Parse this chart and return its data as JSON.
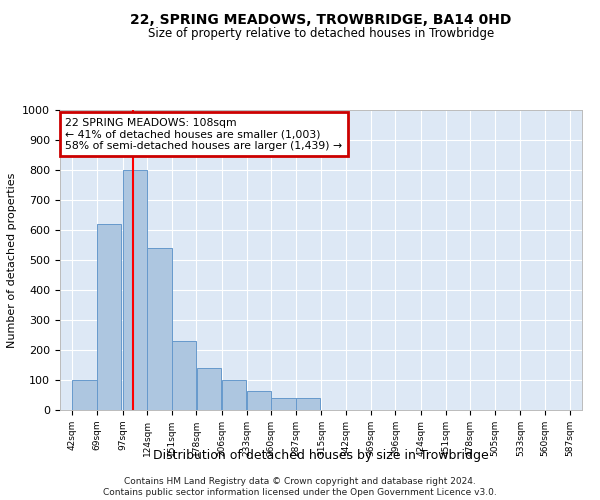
{
  "title": "22, SPRING MEADOWS, TROWBRIDGE, BA14 0HD",
  "subtitle": "Size of property relative to detached houses in Trowbridge",
  "xlabel": "Distribution of detached houses by size in Trowbridge",
  "ylabel": "Number of detached properties",
  "footnote1": "Contains HM Land Registry data © Crown copyright and database right 2024.",
  "footnote2": "Contains public sector information licensed under the Open Government Licence v3.0.",
  "annotation_title": "22 SPRING MEADOWS: 108sqm",
  "annotation_line1": "← 41% of detached houses are smaller (1,003)",
  "annotation_line2": "58% of semi-detached houses are larger (1,439) →",
  "bar_color": "#adc6e0",
  "bar_edge_color": "#6699cc",
  "bg_color": "#dde8f5",
  "red_line_x": 108,
  "annotation_box_color": "#cc0000",
  "bins": [
    42,
    69,
    97,
    124,
    151,
    178,
    206,
    233,
    260,
    287,
    315,
    342,
    369,
    396,
    424,
    451,
    478,
    505,
    533,
    560,
    587
  ],
  "values": [
    100,
    620,
    800,
    540,
    230,
    140,
    100,
    65,
    40,
    40,
    0,
    0,
    0,
    0,
    0,
    0,
    0,
    0,
    0,
    0
  ],
  "ylim": [
    0,
    1000
  ],
  "yticks": [
    0,
    100,
    200,
    300,
    400,
    500,
    600,
    700,
    800,
    900,
    1000
  ]
}
